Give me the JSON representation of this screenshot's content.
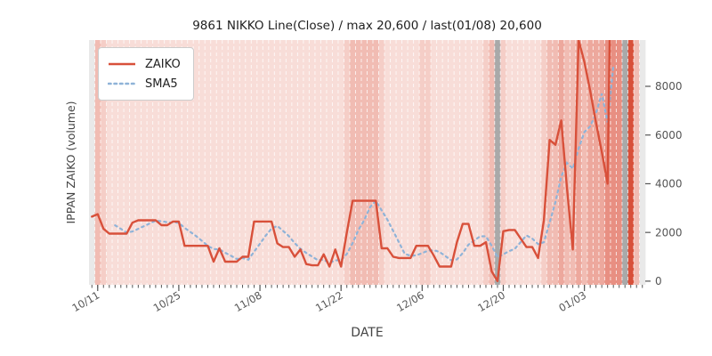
{
  "title": "9861 NIKKO Line(Close) / max 20,600 / last(01/08) 20,600",
  "axes": {
    "ylabel_left": "IPPAN ZAIKO (volume)",
    "xlabel": "DATE",
    "yticks": [
      0,
      2000,
      4000,
      6000,
      8000
    ],
    "ylim": [
      -150,
      9900
    ]
  },
  "legend": {
    "items": [
      {
        "label": "ZAIKO",
        "style": "solid",
        "color": "#d8503a"
      },
      {
        "label": "SMA5",
        "style": "dotted",
        "color": "#8fb3d8"
      }
    ]
  },
  "chart_data": {
    "type": "line",
    "title": "9861 NIKKO Line(Close) / max 20,600 / last(01/08) 20,600",
    "xlabel": "DATE",
    "ylabel": "IPPAN ZAIKO (volume)",
    "n_days": 96,
    "first_day": "10/10",
    "last_data_day": "01/08",
    "xtick_labels": [
      "10/11",
      "10/25",
      "11/08",
      "11/22",
      "12/06",
      "12/20",
      "01/03"
    ],
    "xtick_indices": [
      1,
      15,
      29,
      43,
      57,
      71,
      85
    ],
    "yticks": [
      0,
      2000,
      4000,
      6000,
      8000
    ],
    "ylim": [
      -150,
      9900
    ],
    "max_close": "20,600",
    "last_close": "20,600",
    "series": [
      {
        "name": "ZAIKO",
        "values": [
          2650,
          2750,
          2150,
          1950,
          1950,
          1950,
          1950,
          2400,
          2500,
          2500,
          2500,
          2500,
          2300,
          2300,
          2450,
          2450,
          1450,
          1450,
          1450,
          1450,
          1450,
          800,
          1350,
          800,
          800,
          800,
          1000,
          1000,
          2450,
          2450,
          2450,
          2450,
          1550,
          1400,
          1400,
          1000,
          1300,
          700,
          650,
          650,
          1100,
          600,
          1300,
          600,
          2000,
          3300,
          3300,
          3300,
          3300,
          3300,
          1350,
          1350,
          1000,
          950,
          950,
          950,
          1450,
          1450,
          1450,
          1050,
          600,
          600,
          600,
          1600,
          2350,
          2350,
          1450,
          1450,
          1600,
          400,
          0,
          2050,
          2100,
          2100,
          1750,
          1400,
          1400,
          950,
          2500,
          5800,
          5600,
          6600,
          3800,
          1300,
          9900,
          9000,
          7800,
          6500,
          5300,
          4000,
          20600
        ]
      },
      {
        "name": "SMA5",
        "values": [
          null,
          null,
          null,
          null,
          2290,
          2150,
          1990,
          2040,
          2150,
          2260,
          2370,
          2480,
          2460,
          2420,
          2410,
          2400,
          2190,
          2020,
          1850,
          1650,
          1450,
          1320,
          1300,
          1170,
          1040,
          910,
          950,
          880,
          1210,
          1540,
          1870,
          2160,
          2270,
          2060,
          1850,
          1560,
          1330,
          1160,
          1010,
          860,
          880,
          740,
          860,
          850,
          1120,
          1560,
          2100,
          2500,
          3040,
          3300,
          2910,
          2520,
          2060,
          1590,
          1120,
          1040,
          1060,
          1150,
          1250,
          1270,
          1200,
          1030,
          860,
          890,
          1150,
          1500,
          1670,
          1840,
          1840,
          1450,
          980,
          1100,
          1230,
          1330,
          1600,
          1880,
          1750,
          1520,
          1600,
          2410,
          3250,
          4290,
          4860,
          4620,
          5440,
          6120,
          6360,
          6900,
          7700,
          6520,
          8840
        ]
      }
    ],
    "background_stripes": [
      "E",
      "3",
      "2",
      "1",
      "1",
      "1",
      "1",
      "1",
      "1",
      "1",
      "1",
      "1",
      "1",
      "1",
      "1",
      "1",
      "1",
      "1",
      "1",
      "1",
      "1",
      "1",
      "1",
      "1",
      "1",
      "1",
      "1",
      "1",
      "1",
      "1",
      "1",
      "1",
      "1",
      "1",
      "1",
      "1",
      "1",
      "1",
      "1",
      "1",
      "1",
      "1",
      "1",
      "1",
      "2",
      "3",
      "3",
      "3",
      "3",
      "3",
      "2",
      "1",
      "1",
      "1",
      "1",
      "1",
      "1",
      "2",
      "2",
      "1",
      "1",
      "1",
      "1",
      "1",
      "1",
      "1",
      "1",
      "1",
      "2",
      "3",
      "G",
      "2",
      "1",
      "1",
      "1",
      "1",
      "1",
      "1",
      "2",
      "3",
      "3",
      "4",
      "3",
      "3",
      "4",
      "3",
      "4",
      "4",
      "4",
      "5",
      "5",
      "5",
      "G",
      "R",
      "3",
      "E"
    ],
    "colors": {
      "zaiko_line": "#d8503a",
      "sma5_line": "#8fb3d8",
      "tick_text": "#555555",
      "title_text": "#212121",
      "label_text": "#444444",
      "day_separator": "rgba(255,255,255,0.75)",
      "stripe_levels": {
        "1": "#f8ddd8",
        "2": "#f5cec7",
        "3": "#f1bcb3",
        "4": "#eda89d",
        "5": "#e88f82",
        "G": "#a9a9a9",
        "E": "#e9e9e9",
        "R": "#d8503a"
      }
    }
  }
}
